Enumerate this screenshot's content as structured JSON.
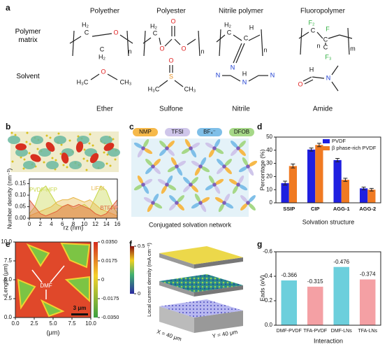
{
  "panel_labels": [
    "a",
    "b",
    "c",
    "d",
    "e",
    "f",
    "g"
  ],
  "panel_a": {
    "columns": [
      "Polyether",
      "Polyester",
      "Nitrile polymer",
      "Fluoropolymer"
    ],
    "rows": [
      "Polymer matrix",
      "Solvent"
    ],
    "solvent_names": [
      "Ether",
      "Sulfone",
      "Nitrile",
      "Amide"
    ],
    "structures": [
      {
        "labels": [
          "H₂",
          "C",
          "O",
          "C",
          "H₂",
          "n"
        ]
      },
      {
        "labels": [
          "H₂",
          "C",
          "O",
          "O",
          "O",
          "n"
        ]
      },
      {
        "labels": [
          "H₂",
          "C",
          "H",
          "C",
          "N",
          "n"
        ]
      },
      {
        "labels": [
          "F₂",
          "C",
          "F",
          "C",
          "C",
          "F₃",
          "m",
          "n"
        ]
      },
      {
        "labels": [
          "H₃C",
          "O",
          "CH₃"
        ]
      },
      {
        "labels": [
          "O",
          "S",
          "H₃C",
          "CH₃"
        ]
      },
      {
        "labels": [
          "N",
          "N",
          "H",
          "N"
        ]
      },
      {
        "labels": [
          "O",
          "H",
          "N"
        ]
      }
    ]
  },
  "panel_c": {
    "legend": [
      "NMP",
      "TFSI",
      "BF₄⁻",
      "DFOB"
    ],
    "caption": "Conjugated solvation network"
  },
  "chart_data": [
    {
      "type": "area",
      "ylabel": "Number density (nm⁻³)",
      "xlabel": "rz (nm)",
      "x": [
        0,
        1,
        2,
        3,
        4,
        5,
        6,
        7,
        8,
        9,
        10,
        11,
        12,
        13,
        14,
        15,
        16
      ],
      "series": [
        {
          "name": "PVDF-HFP",
          "color": "#c8d84a",
          "values": [
            0.02,
            0.05,
            0.12,
            0.14,
            0.1,
            0.06,
            0.05,
            0.06,
            0.04,
            0.05,
            0.06,
            0.04,
            0.09,
            0.14,
            0.12,
            0.06,
            0.02
          ]
        },
        {
          "name": "LiFSI",
          "color": "#e8b84a",
          "values": [
            0.01,
            0.02,
            0.03,
            0.04,
            0.05,
            0.07,
            0.08,
            0.08,
            0.09,
            0.08,
            0.07,
            0.08,
            0.06,
            0.04,
            0.03,
            0.02,
            0.01
          ]
        },
        {
          "name": "BTFFP",
          "color": "#e0603a",
          "values": [
            0.08,
            0.05,
            0.02,
            0.01,
            0.02,
            0.03,
            0.05,
            0.06,
            0.05,
            0.06,
            0.05,
            0.04,
            0.02,
            0.01,
            0.02,
            0.05,
            0.08
          ]
        }
      ],
      "xlim": [
        0,
        16
      ],
      "xticks": [
        0,
        2,
        4,
        6,
        8,
        10,
        12,
        14,
        16
      ],
      "ylim": [
        0,
        0.17
      ],
      "yticks": [
        {
          "value": 0,
          "label": "0.00"
        },
        {
          "value": 0.05,
          "label": "0.05"
        },
        {
          "value": 0.1,
          "label": "0.10"
        },
        {
          "value": 0.15,
          "label": "0.15"
        }
      ]
    },
    {
      "type": "bar",
      "ylabel": "Percentage (%)",
      "xlabel": "Solvation structure",
      "categories": [
        "SSIP",
        "CIP",
        "AGG-1",
        "AGG-2"
      ],
      "series": [
        {
          "name": "PVDF",
          "color": "#1f1fe0",
          "values": [
            15,
            40.5,
            32.5,
            11
          ],
          "errors": [
            1.5,
            1.2,
            1.3,
            1
          ]
        },
        {
          "name": "β phase-rich PVDF",
          "color": "#f07a22",
          "values": [
            28,
            44,
            17.5,
            10
          ],
          "errors": [
            1.5,
            1.3,
            1.2,
            1
          ]
        }
      ],
      "ylim": [
        0,
        50
      ],
      "yticks": [
        0,
        10,
        20,
        30,
        40,
        50
      ],
      "legend": "upper right"
    },
    {
      "type": "bar-single",
      "ylabel": "Eads (eV)",
      "xlabel": "Interaction",
      "categories": [
        "DMF-PVDF",
        "TFA-PVDF",
        "DMF-LNs",
        "TFA-LNs"
      ],
      "values": [
        -0.366,
        -0.315,
        -0.476,
        -0.374
      ],
      "colors": [
        "#6ccfdc",
        "#f4a0a4",
        "#6ccfdc",
        "#f4a0a4"
      ],
      "ylim": [
        0,
        -0.6
      ],
      "yticks": [
        {
          "value": 0,
          "label": "0.0"
        },
        {
          "value": -0.2,
          "label": "-0.2"
        },
        {
          "value": -0.4,
          "label": "-0.4"
        },
        {
          "value": -0.6,
          "label": "-0.6"
        }
      ]
    },
    {
      "type": "map",
      "ylabel": "Length (μm)",
      "xlabel": "(μm)",
      "annotations": [
        "DMF",
        "3 μm"
      ],
      "xlim": [
        0,
        10
      ],
      "xticks": [
        {
          "value": 0,
          "label": "0.0"
        },
        2.5,
        {
          "value": 5,
          "label": "5.0"
        },
        7.5,
        {
          "value": 10,
          "label": "10.0"
        }
      ],
      "ylim": [
        0,
        10
      ],
      "yticks": [
        {
          "value": 0,
          "label": "0.0"
        },
        2.5,
        {
          "value": 5,
          "label": "5.0"
        },
        7.5,
        {
          "value": 10,
          "label": "10.0"
        }
      ],
      "colorbar_lim": [
        -0.035,
        0.035
      ],
      "colorbar_ticks": [
        {
          "value": 0.035,
          "label": "0.0350"
        },
        {
          "value": 0.0175,
          "label": "0.0175"
        },
        0,
        {
          "value": -0.0175,
          "label": "-0.0175"
        },
        {
          "value": -0.035,
          "label": "-0.0350"
        }
      ]
    },
    {
      "type": "colorbar",
      "colorbar_label": "Local current density (mA cm⁻²)",
      "colorbar_lim": [
        0,
        0.5
      ],
      "colorbar_ticks": [
        0,
        0.5
      ],
      "annotations": [
        "X = 40 μm",
        "Y = 40 μm"
      ]
    }
  ]
}
